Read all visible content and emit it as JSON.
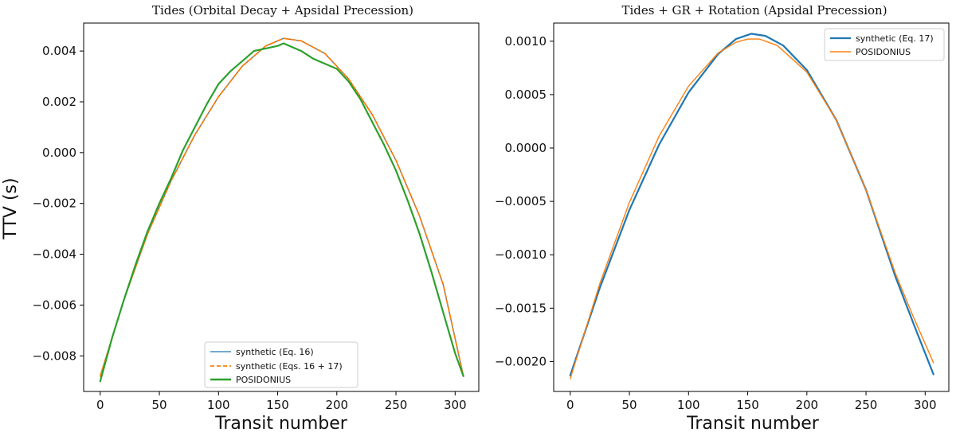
{
  "chart_data": [
    {
      "type": "line",
      "title": "Tides (Orbital Decay + Apsidal Precession)",
      "xlabel": "Transit number",
      "ylabel": "TTV (s)",
      "xlim": [
        -14,
        320
      ],
      "ylim": [
        -0.0094,
        0.0051
      ],
      "xticks": [
        0,
        50,
        100,
        150,
        200,
        250,
        300
      ],
      "xtick_labels": [
        "0",
        "50",
        "100",
        "150",
        "200",
        "250",
        "300"
      ],
      "yticks": [
        0.004,
        0.002,
        0.0,
        -0.002,
        -0.004,
        -0.006,
        -0.008
      ],
      "ytick_labels": [
        "0.004",
        "0.002",
        "0.000",
        "−0.002",
        "−0.004",
        "−0.006",
        "−0.008"
      ],
      "legend_position": "lower-center",
      "series": [
        {
          "name": "synthetic (Eq. 16)",
          "color": "#1f77b4",
          "style": "solid",
          "x": [
            0,
            20,
            40,
            60,
            80,
            100,
            120,
            140,
            155,
            170,
            190,
            210,
            230,
            250,
            270,
            290,
            307
          ],
          "y": [
            -0.0088,
            -0.0058,
            -0.0032,
            -0.0011,
            0.0007,
            0.0022,
            0.0034,
            0.0042,
            0.0045,
            0.0044,
            0.0039,
            0.0029,
            0.0015,
            -0.0003,
            -0.0025,
            -0.0052,
            -0.0088
          ]
        },
        {
          "name": "synthetic (Eqs. 16 + 17)",
          "color": "#ff7f0e",
          "style": "dashed",
          "x": [
            0,
            20,
            40,
            60,
            80,
            100,
            120,
            140,
            155,
            170,
            190,
            210,
            230,
            250,
            270,
            290,
            307
          ],
          "y": [
            -0.0088,
            -0.0058,
            -0.0032,
            -0.0011,
            0.0007,
            0.0022,
            0.0034,
            0.0042,
            0.0045,
            0.0044,
            0.0039,
            0.0029,
            0.0015,
            -0.0003,
            -0.0025,
            -0.0052,
            -0.0088
          ]
        },
        {
          "name": "POSIDONIUS",
          "color": "#2ca02c",
          "style": "solid-thick",
          "x": [
            0,
            10,
            20,
            30,
            40,
            50,
            60,
            70,
            80,
            90,
            100,
            110,
            120,
            130,
            140,
            150,
            155,
            160,
            170,
            180,
            190,
            200,
            210,
            220,
            230,
            240,
            250,
            260,
            270,
            280,
            290,
            300,
            307
          ],
          "y": [
            -0.009,
            -0.0073,
            -0.0058,
            -0.0044,
            -0.0031,
            -0.002,
            -0.001,
            0.0001,
            0.001,
            0.0019,
            0.0027,
            0.0032,
            0.0036,
            0.004,
            0.0041,
            0.0042,
            0.0043,
            0.0042,
            0.004,
            0.0037,
            0.0035,
            0.0033,
            0.0028,
            0.0021,
            0.0012,
            0.0003,
            -0.0007,
            -0.0019,
            -0.0032,
            -0.0047,
            -0.0063,
            -0.0079,
            -0.0088
          ]
        }
      ]
    },
    {
      "type": "line",
      "title": "Tides + GR + Rotation (Apsidal Precession)",
      "xlabel": "Transit number",
      "ylabel": "",
      "xlim": [
        -14,
        320
      ],
      "ylim": [
        -0.00228,
        0.00117
      ],
      "xticks": [
        0,
        50,
        100,
        150,
        200,
        250,
        300
      ],
      "xtick_labels": [
        "0",
        "50",
        "100",
        "150",
        "200",
        "250",
        "300"
      ],
      "yticks": [
        0.001,
        0.0005,
        0.0,
        -0.0005,
        -0.001,
        -0.0015,
        -0.002
      ],
      "ytick_labels": [
        "0.0010",
        "0.0005",
        "0.0000",
        "−0.0005",
        "−0.0010",
        "−0.0015",
        "−0.0020"
      ],
      "legend_position": "top-right",
      "series": [
        {
          "name": "synthetic (Eq. 17)",
          "color": "#1f77b4",
          "style": "solid-thick",
          "x": [
            0,
            25,
            50,
            75,
            100,
            125,
            140,
            153,
            165,
            180,
            200,
            225,
            250,
            275,
            290,
            307
          ],
          "y": [
            -0.00213,
            -0.00131,
            -0.00058,
            3e-05,
            0.00052,
            0.00088,
            0.00102,
            0.00107,
            0.00105,
            0.00096,
            0.00073,
            0.00026,
            -0.00039,
            -0.00121,
            -0.00164,
            -0.00212
          ]
        },
        {
          "name": "POSIDONIUS",
          "color": "#ff7f0e",
          "style": "solid",
          "x": [
            0,
            25,
            50,
            75,
            100,
            125,
            140,
            150,
            160,
            175,
            200,
            225,
            250,
            275,
            290,
            307
          ],
          "y": [
            -0.00216,
            -0.00127,
            -0.00051,
            0.00011,
            0.00058,
            0.00089,
            0.00099,
            0.00102,
            0.00102,
            0.00096,
            0.00071,
            0.00026,
            -0.00039,
            -0.00118,
            -0.00158,
            -0.00201
          ]
        }
      ]
    }
  ]
}
